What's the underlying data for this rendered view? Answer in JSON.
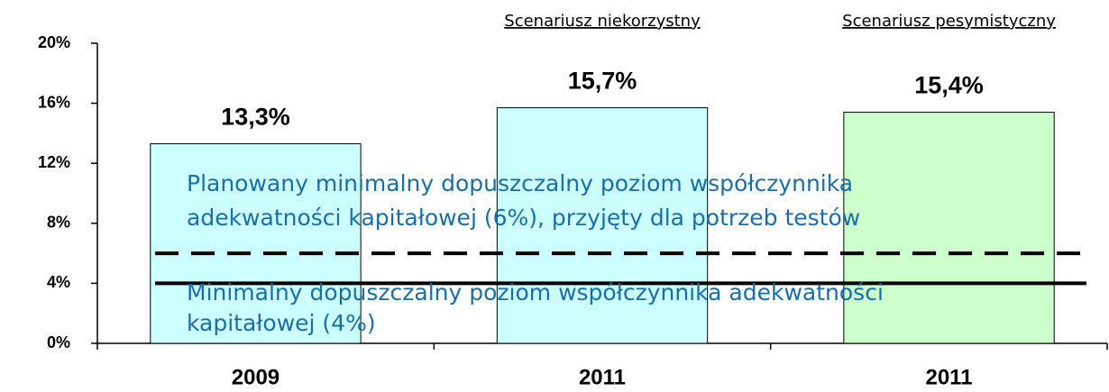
{
  "chart_data": {
    "type": "bar",
    "categories": [
      "2009",
      "2011",
      "2011"
    ],
    "values": [
      13.3,
      15.7,
      15.4
    ],
    "value_labels": [
      "13,3%",
      "15,7%",
      "15,4%"
    ],
    "colors": [
      "#ccffff",
      "#ccffff",
      "#ccffcc"
    ],
    "bar_annotations": [
      null,
      "Scenariusz niekorzystny",
      "Scenariusz pesymistyczny"
    ],
    "ylim": [
      0,
      20
    ],
    "yticks": [
      {
        "value": 0,
        "label": "0%"
      },
      {
        "value": 4,
        "label": "4%"
      },
      {
        "value": 8,
        "label": "8%"
      },
      {
        "value": 12,
        "label": "12%"
      },
      {
        "value": 16,
        "label": "16%"
      },
      {
        "value": 20,
        "label": "20%"
      }
    ],
    "reference_lines": [
      {
        "value": 6,
        "style": "dashed",
        "label": [
          "Planowany minimalny dopuszczalny poziom współczynnika",
          "adekwatności kapitałowej (6%), przyjęty dla potrzeb testów"
        ]
      },
      {
        "value": 4,
        "style": "solid",
        "label": [
          "Minimalny dopuszczalny poziom współczynnika adekwatności",
          "kapitałowej (4%)"
        ]
      }
    ]
  }
}
